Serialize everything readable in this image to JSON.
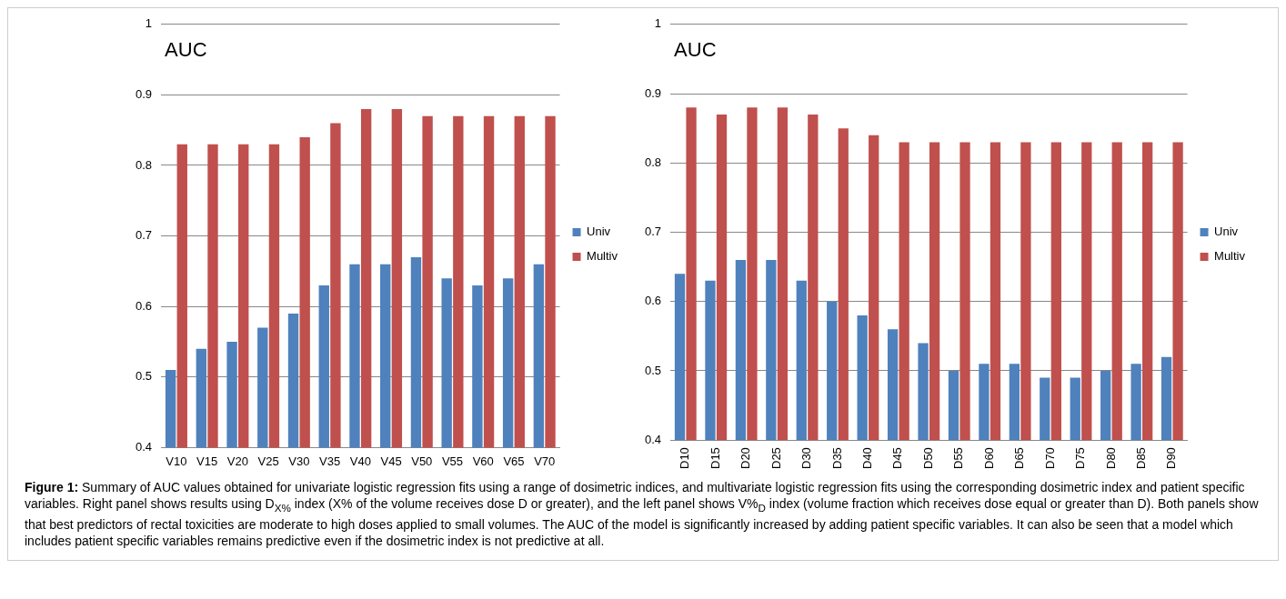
{
  "chart_data": [
    {
      "type": "bar",
      "ylabel": "AUC",
      "categories": [
        "V10",
        "V15",
        "V20",
        "V25",
        "V30",
        "V35",
        "V40",
        "V45",
        "V50",
        "V55",
        "V60",
        "V65",
        "V70"
      ],
      "series": [
        {
          "name": "Univ",
          "color": "#4f81bd",
          "values": [
            0.51,
            0.54,
            0.55,
            0.57,
            0.59,
            0.63,
            0.66,
            0.66,
            0.67,
            0.64,
            0.63,
            0.64,
            0.66
          ]
        },
        {
          "name": "Multiv",
          "color": "#c0504d",
          "values": [
            0.83,
            0.83,
            0.83,
            0.83,
            0.84,
            0.86,
            0.88,
            0.88,
            0.87,
            0.87,
            0.87,
            0.87,
            0.87
          ]
        }
      ],
      "ylim": [
        0.4,
        1
      ],
      "yticks": [
        0.4,
        0.5,
        0.6,
        0.7,
        0.8,
        0.9,
        1
      ],
      "grid": "y",
      "legend": "right"
    },
    {
      "type": "bar",
      "ylabel": "AUC",
      "categories": [
        "D10",
        "D15",
        "D20",
        "D25",
        "D30",
        "D35",
        "D40",
        "D45",
        "D50",
        "D55",
        "D60",
        "D65",
        "D70",
        "D75",
        "D80",
        "D85",
        "D90"
      ],
      "series": [
        {
          "name": "Univ",
          "color": "#4f81bd",
          "values": [
            0.64,
            0.63,
            0.66,
            0.66,
            0.63,
            0.6,
            0.58,
            0.56,
            0.54,
            0.5,
            0.51,
            0.51,
            0.49,
            0.49,
            0.5,
            0.51,
            0.52
          ]
        },
        {
          "name": "Multiv",
          "color": "#c0504d",
          "values": [
            0.88,
            0.87,
            0.88,
            0.88,
            0.87,
            0.85,
            0.84,
            0.83,
            0.83,
            0.83,
            0.83,
            0.83,
            0.83,
            0.83,
            0.83,
            0.83,
            0.83
          ]
        }
      ],
      "ylim": [
        0.4,
        1
      ],
      "yticks": [
        0.4,
        0.5,
        0.6,
        0.7,
        0.8,
        0.9,
        1
      ],
      "grid": "y",
      "legend": "right",
      "annotations": [
        "Figure 1:",
        "Summary of AUC values obtained for univariate logistic regression fits using a range of dosimetric indices, and multivariate logistic regression fits using the corresponding dosimetric index and patient specific variables. Right panel shows results using D$_{X%}$ index (X% of the volume receives dose D or greater), and the left panel shows V%$_{D}$ index (volume fraction which receives dose equal or greater than D). Both panels show that best predictors of rectal toxicities are moderate to high doses applied to small volumes. The AUC of the model is significantly increased by adding patient specific variables. It can also be seen that a model which includes patient specific variables remains predictive even if the dosimetric index is not predictive at all."
      ]
    }
  ]
}
